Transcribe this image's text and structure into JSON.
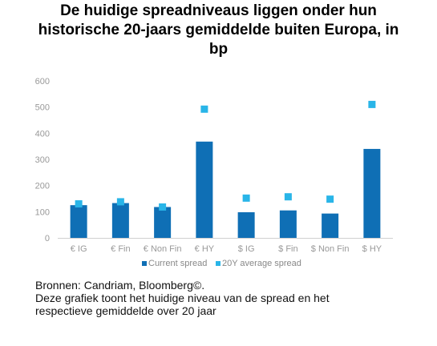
{
  "title_lines": [
    "De huidige spreadniveaus liggen onder hun",
    "historische 20-jaars gemiddelde buiten Europa, in",
    "bp"
  ],
  "chart_data": {
    "type": "bar",
    "categories": [
      "€ IG",
      "€ Fin",
      "€ Non Fin",
      "€ HY",
      "$ IG",
      "$ Fin",
      "$ Non Fin",
      "$ HY"
    ],
    "series": [
      {
        "name": "Current spread",
        "type": "bar",
        "color": "#0F6FB5",
        "values": [
          125,
          133,
          118,
          368,
          98,
          105,
          93,
          340
        ]
      },
      {
        "name": "20Y average spread",
        "type": "marker",
        "color": "#29B5E8",
        "values": [
          130,
          138,
          118,
          492,
          152,
          157,
          148,
          510
        ]
      }
    ],
    "yticks": [
      0,
      100,
      200,
      300,
      400,
      500,
      600
    ],
    "ylim": [
      0,
      600
    ],
    "legend_position": "bottom",
    "grid": false
  },
  "footer": {
    "source": "Bronnen: Candriam, Bloomberg©.",
    "caption_lines": [
      "Deze grafiek toont het huidige niveau van de spread en het",
      "respectieve gemiddelde over 20 jaar"
    ]
  }
}
